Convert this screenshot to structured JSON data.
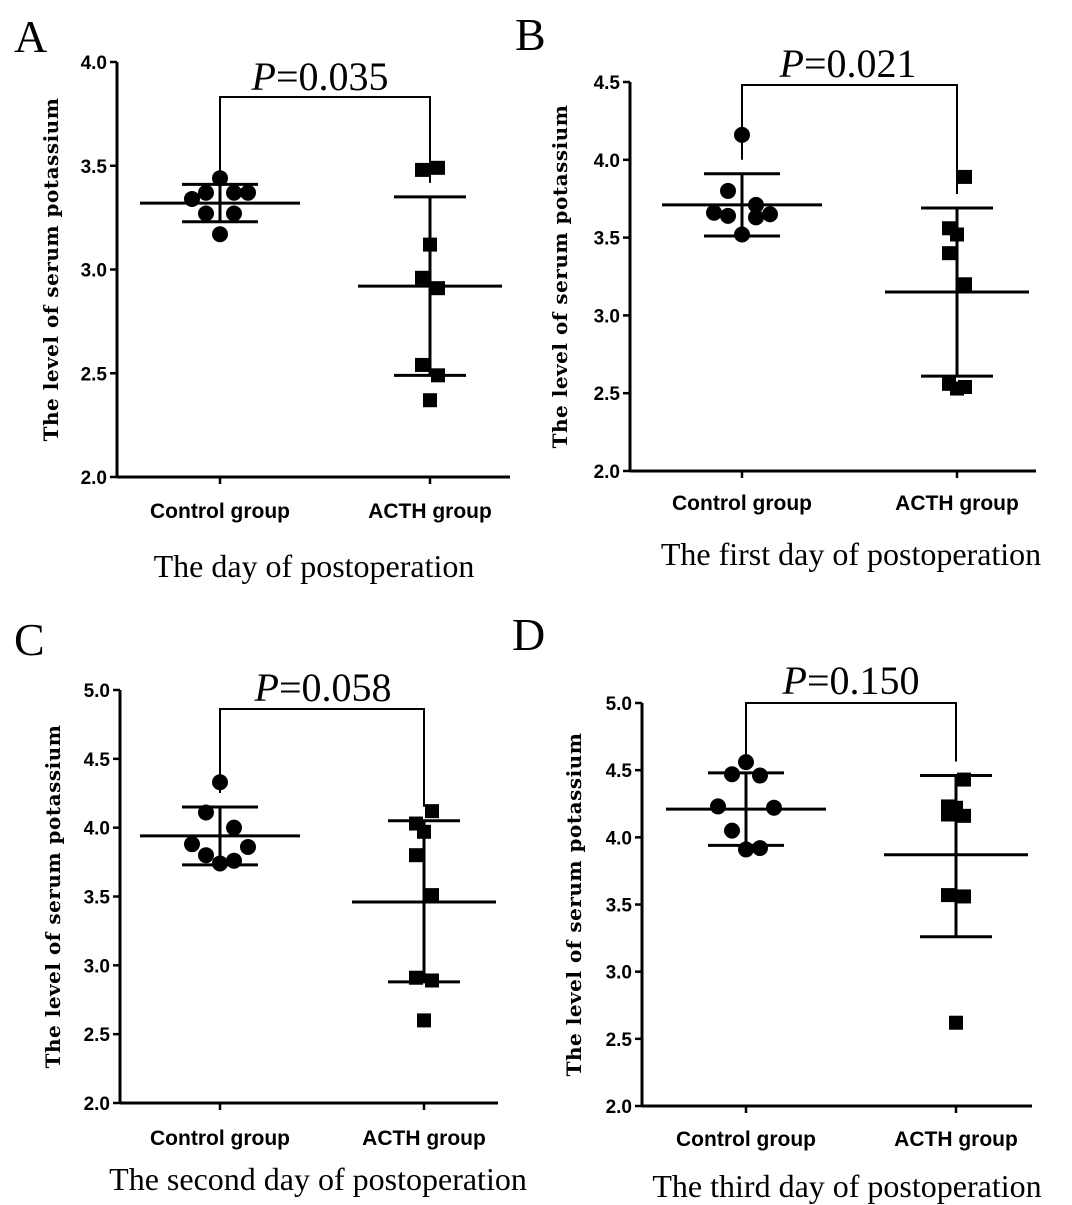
{
  "chart_data": [
    {
      "type": "scatter",
      "panel": "A",
      "xlabel": "The day of postoperation",
      "ylabel": "The level of serum potassium",
      "categories": [
        "Control group",
        "ACTH group"
      ],
      "ylim": [
        2.0,
        4.0
      ],
      "yticks": [
        "2.0",
        "2.5",
        "3.0",
        "3.5",
        "4.0"
      ],
      "p_label": "P",
      "p_value": "=0.035",
      "groups": [
        {
          "points": [
            3.44,
            3.37,
            3.37,
            3.34,
            3.37,
            3.27,
            3.27,
            3.17
          ],
          "mean": 3.32,
          "sd_upper": 3.41,
          "sd_lower": 3.23
        },
        {
          "points": [
            3.49,
            3.48,
            3.12,
            2.96,
            2.91,
            2.54,
            2.49,
            2.37
          ],
          "mean": 2.92,
          "sd_upper": 3.35,
          "sd_lower": 2.49
        }
      ]
    },
    {
      "type": "scatter",
      "panel": "B",
      "xlabel": "The first day of postoperation",
      "ylabel": "The level of serum potassium",
      "categories": [
        "Control group",
        "ACTH group"
      ],
      "ylim": [
        2.0,
        4.5
      ],
      "yticks": [
        "2.0",
        "2.5",
        "3.0",
        "3.5",
        "4.0",
        "4.5"
      ],
      "p_label": "P",
      "p_value": "=0.021",
      "groups": [
        {
          "points": [
            4.16,
            3.8,
            3.71,
            3.66,
            3.65,
            3.64,
            3.63,
            3.52
          ],
          "mean": 3.71,
          "sd_upper": 3.91,
          "sd_lower": 3.51
        },
        {
          "points": [
            3.89,
            3.56,
            3.52,
            3.4,
            3.2,
            2.56,
            2.54,
            2.53
          ],
          "mean": 3.15,
          "sd_upper": 3.69,
          "sd_lower": 2.61
        }
      ]
    },
    {
      "type": "scatter",
      "panel": "C",
      "xlabel": "The second day of postoperation",
      "ylabel": "The level of serum potassium",
      "categories": [
        "Control group",
        "ACTH group"
      ],
      "ylim": [
        2.0,
        5.0
      ],
      "yticks": [
        "2.0",
        "2.5",
        "3.0",
        "3.5",
        "4.0",
        "4.5",
        "5.0"
      ],
      "p_label": "P",
      "p_value": "=0.058",
      "groups": [
        {
          "points": [
            4.33,
            4.11,
            4.0,
            3.88,
            3.86,
            3.8,
            3.76,
            3.74
          ],
          "mean": 3.94,
          "sd_upper": 4.15,
          "sd_lower": 3.73
        },
        {
          "points": [
            4.12,
            4.03,
            3.97,
            3.8,
            3.51,
            2.91,
            2.89,
            2.6
          ],
          "mean": 3.46,
          "sd_upper": 4.05,
          "sd_lower": 2.88
        }
      ]
    },
    {
      "type": "scatter",
      "panel": "D",
      "xlabel": "The third day of postoperation",
      "ylabel": "The level of serum potassium",
      "categories": [
        "Control group",
        "ACTH group"
      ],
      "ylim": [
        2.0,
        5.0
      ],
      "yticks": [
        "2.0",
        "2.5",
        "3.0",
        "3.5",
        "4.0",
        "4.5",
        "5.0"
      ],
      "p_label": "P",
      "p_value": "=0.150",
      "groups": [
        {
          "points": [
            4.56,
            4.47,
            4.46,
            4.23,
            4.22,
            4.05,
            3.92,
            3.91
          ],
          "mean": 4.21,
          "sd_upper": 4.48,
          "sd_lower": 3.94
        },
        {
          "points": [
            4.43,
            4.23,
            4.22,
            4.17,
            4.16,
            3.57,
            3.56,
            2.62
          ],
          "mean": 3.87,
          "sd_upper": 4.46,
          "sd_lower": 3.26
        }
      ]
    }
  ]
}
